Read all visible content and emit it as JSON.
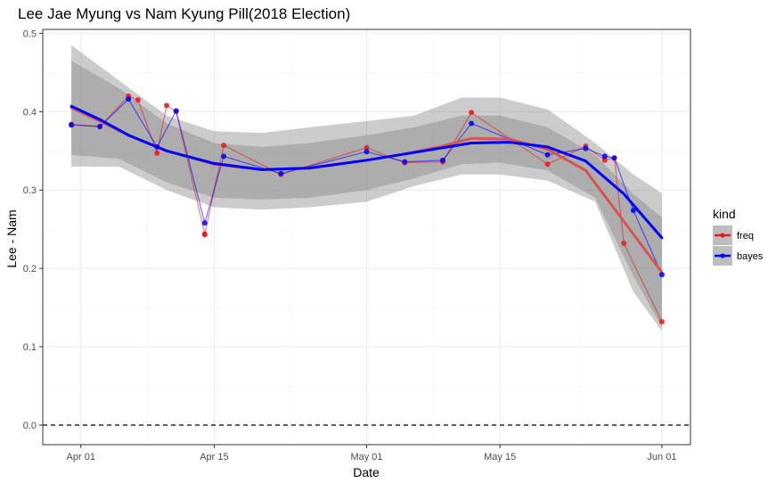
{
  "chart_data": {
    "type": "line",
    "title": "Lee Jae Myung vs Nam Kyung Pill(2018 Election)",
    "xlabel": "Date",
    "ylabel": "Lee - Nam",
    "xlim": [
      "2018-03-28",
      "2018-06-04"
    ],
    "ylim": [
      -0.025,
      0.505
    ],
    "x_ticks": [
      {
        "date": "2018-04-01",
        "label": "Apr 01"
      },
      {
        "date": "2018-04-15",
        "label": "Apr 15"
      },
      {
        "date": "2018-05-01",
        "label": "May 01"
      },
      {
        "date": "2018-05-15",
        "label": "May 15"
      },
      {
        "date": "2018-06-01",
        "label": "Jun 01"
      }
    ],
    "y_ticks": [
      {
        "value": 0.0,
        "label": "0.0"
      },
      {
        "value": 0.1,
        "label": "0.1"
      },
      {
        "value": 0.2,
        "label": "0.2"
      },
      {
        "value": 0.3,
        "label": "0.3"
      },
      {
        "value": 0.4,
        "label": "0.4"
      },
      {
        "value": 0.5,
        "label": "0.5"
      }
    ],
    "reference_line": {
      "y": 0.0,
      "style": "dashed"
    },
    "grid": true,
    "legend": {
      "title": "kind",
      "position": "right",
      "entries": [
        {
          "label": "freq",
          "color": "#e41a1c"
        },
        {
          "label": "bayes",
          "color": "#0000ff"
        }
      ]
    },
    "series": [
      {
        "name": "freq",
        "color": "#e41a1c",
        "points": [
          [
            "2018-03-31",
            0.384
          ],
          [
            "2018-04-03",
            0.381
          ],
          [
            "2018-04-06",
            0.42
          ],
          [
            "2018-04-07",
            0.415
          ],
          [
            "2018-04-09",
            0.347
          ],
          [
            "2018-04-10",
            0.408
          ],
          [
            "2018-04-11",
            0.4
          ],
          [
            "2018-04-14",
            0.244
          ],
          [
            "2018-04-14",
            0.243
          ],
          [
            "2018-04-16",
            0.357
          ],
          [
            "2018-04-22",
            0.32
          ],
          [
            "2018-05-01",
            0.354
          ],
          [
            "2018-05-05",
            0.335
          ],
          [
            "2018-05-09",
            0.336
          ],
          [
            "2018-05-12",
            0.399
          ],
          [
            "2018-05-20",
            0.333
          ],
          [
            "2018-05-24",
            0.356
          ],
          [
            "2018-05-26",
            0.338
          ],
          [
            "2018-05-27",
            0.341
          ],
          [
            "2018-05-28",
            0.232
          ],
          [
            "2018-06-01",
            0.132
          ]
        ]
      },
      {
        "name": "bayes",
        "color": "#0000ff",
        "points": [
          [
            "2018-03-31",
            0.383
          ],
          [
            "2018-04-03",
            0.381
          ],
          [
            "2018-04-06",
            0.416
          ],
          [
            "2018-04-09",
            0.355
          ],
          [
            "2018-04-11",
            0.401
          ],
          [
            "2018-04-14",
            0.258
          ],
          [
            "2018-04-16",
            0.343
          ],
          [
            "2018-04-22",
            0.321
          ],
          [
            "2018-05-01",
            0.349
          ],
          [
            "2018-05-05",
            0.336
          ],
          [
            "2018-05-09",
            0.338
          ],
          [
            "2018-05-12",
            0.385
          ],
          [
            "2018-05-20",
            0.345
          ],
          [
            "2018-05-24",
            0.353
          ],
          [
            "2018-05-26",
            0.343
          ],
          [
            "2018-05-27",
            0.341
          ],
          [
            "2018-05-29",
            0.274
          ],
          [
            "2018-06-01",
            0.192
          ]
        ]
      }
    ],
    "smooth": [
      {
        "name": "freq",
        "color": "#d9534f",
        "points": [
          [
            "2018-03-31",
            0.405
          ],
          [
            "2018-04-03",
            0.388
          ],
          [
            "2018-04-06",
            0.37
          ],
          [
            "2018-04-10",
            0.35
          ],
          [
            "2018-04-15",
            0.333
          ],
          [
            "2018-04-20",
            0.326
          ],
          [
            "2018-04-25",
            0.328
          ],
          [
            "2018-05-01",
            0.338
          ],
          [
            "2018-05-05",
            0.346
          ],
          [
            "2018-05-09",
            0.356
          ],
          [
            "2018-05-12",
            0.366
          ],
          [
            "2018-05-16",
            0.365
          ],
          [
            "2018-05-20",
            0.352
          ],
          [
            "2018-05-24",
            0.325
          ],
          [
            "2018-05-28",
            0.26
          ],
          [
            "2018-06-01",
            0.195
          ]
        ],
        "band_upper": [
          [
            "2018-03-31",
            0.465
          ],
          [
            "2018-04-05",
            0.43
          ],
          [
            "2018-04-10",
            0.385
          ],
          [
            "2018-04-15",
            0.36
          ],
          [
            "2018-04-20",
            0.355
          ],
          [
            "2018-04-25",
            0.36
          ],
          [
            "2018-05-01",
            0.37
          ],
          [
            "2018-05-06",
            0.38
          ],
          [
            "2018-05-11",
            0.395
          ],
          [
            "2018-05-15",
            0.395
          ],
          [
            "2018-05-20",
            0.38
          ],
          [
            "2018-05-25",
            0.345
          ],
          [
            "2018-05-29",
            0.295
          ],
          [
            "2018-06-01",
            0.265
          ]
        ],
        "band_lower": [
          [
            "2018-03-31",
            0.345
          ],
          [
            "2018-04-05",
            0.34
          ],
          [
            "2018-04-10",
            0.31
          ],
          [
            "2018-04-15",
            0.29
          ],
          [
            "2018-04-20",
            0.288
          ],
          [
            "2018-04-25",
            0.29
          ],
          [
            "2018-05-01",
            0.3
          ],
          [
            "2018-05-06",
            0.315
          ],
          [
            "2018-05-11",
            0.333
          ],
          [
            "2018-05-15",
            0.335
          ],
          [
            "2018-05-20",
            0.325
          ],
          [
            "2018-05-25",
            0.29
          ],
          [
            "2018-05-29",
            0.19
          ],
          [
            "2018-06-01",
            0.125
          ]
        ]
      },
      {
        "name": "bayes",
        "color": "#0000ff",
        "points": [
          [
            "2018-03-31",
            0.407
          ],
          [
            "2018-04-03",
            0.39
          ],
          [
            "2018-04-06",
            0.37
          ],
          [
            "2018-04-10",
            0.35
          ],
          [
            "2018-04-15",
            0.334
          ],
          [
            "2018-04-20",
            0.326
          ],
          [
            "2018-04-25",
            0.328
          ],
          [
            "2018-05-01",
            0.338
          ],
          [
            "2018-05-05",
            0.346
          ],
          [
            "2018-05-09",
            0.354
          ],
          [
            "2018-05-12",
            0.36
          ],
          [
            "2018-05-16",
            0.361
          ],
          [
            "2018-05-20",
            0.355
          ],
          [
            "2018-05-24",
            0.337
          ],
          [
            "2018-05-28",
            0.295
          ],
          [
            "2018-06-01",
            0.239
          ]
        ],
        "band_upper": [
          [
            "2018-03-31",
            0.485
          ],
          [
            "2018-04-05",
            0.44
          ],
          [
            "2018-04-10",
            0.395
          ],
          [
            "2018-04-15",
            0.375
          ],
          [
            "2018-04-20",
            0.373
          ],
          [
            "2018-04-25",
            0.38
          ],
          [
            "2018-05-01",
            0.388
          ],
          [
            "2018-05-06",
            0.395
          ],
          [
            "2018-05-11",
            0.418
          ],
          [
            "2018-05-15",
            0.418
          ],
          [
            "2018-05-20",
            0.403
          ],
          [
            "2018-05-25",
            0.36
          ],
          [
            "2018-05-29",
            0.32
          ],
          [
            "2018-06-01",
            0.296
          ]
        ],
        "band_lower": [
          [
            "2018-03-31",
            0.33
          ],
          [
            "2018-04-05",
            0.33
          ],
          [
            "2018-04-10",
            0.3
          ],
          [
            "2018-04-15",
            0.278
          ],
          [
            "2018-04-20",
            0.275
          ],
          [
            "2018-04-25",
            0.278
          ],
          [
            "2018-05-01",
            0.285
          ],
          [
            "2018-05-06",
            0.305
          ],
          [
            "2018-05-11",
            0.32
          ],
          [
            "2018-05-15",
            0.32
          ],
          [
            "2018-05-20",
            0.312
          ],
          [
            "2018-05-25",
            0.285
          ],
          [
            "2018-05-29",
            0.17
          ],
          [
            "2018-06-01",
            0.12
          ]
        ]
      }
    ]
  }
}
